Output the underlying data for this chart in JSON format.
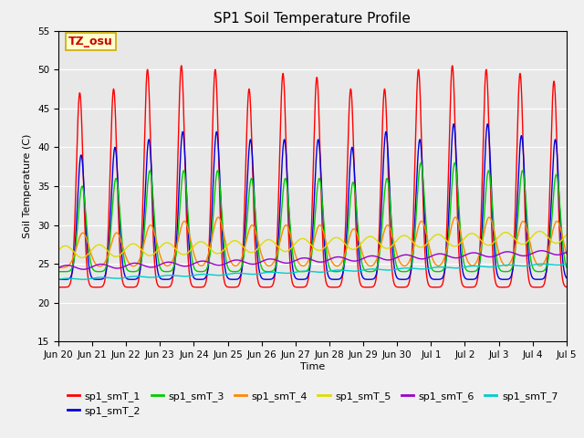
{
  "title": "SP1 Soil Temperature Profile",
  "xlabel": "Time",
  "ylabel": "Soil Temperature (C)",
  "ylim": [
    15,
    55
  ],
  "yticks": [
    15,
    20,
    25,
    30,
    35,
    40,
    45,
    50,
    55
  ],
  "plot_bg": "#e8e8e8",
  "fig_bg": "#f0f0f0",
  "annotation_text": "TZ_osu",
  "annotation_bg": "#ffffcc",
  "annotation_border": "#ccaa00",
  "annotation_text_color": "#cc0000",
  "series_colors": {
    "sp1_smT_1": "#ff0000",
    "sp1_smT_2": "#0000dd",
    "sp1_smT_3": "#00cc00",
    "sp1_smT_4": "#ff8800",
    "sp1_smT_5": "#dddd00",
    "sp1_smT_6": "#9900cc",
    "sp1_smT_7": "#00cccc"
  },
  "x_tick_labels": [
    "Jun 20",
    "Jun 21",
    "Jun 22",
    "Jun 23",
    "Jun 24",
    "Jun 25",
    "Jun 26",
    "Jun 27",
    "Jun 28",
    "Jun 29",
    "Jun 30",
    "Jul 1",
    "Jul 2",
    "Jul 3",
    "Jul 4",
    "Jul 5"
  ],
  "n_days": 15,
  "points_per_day": 288
}
